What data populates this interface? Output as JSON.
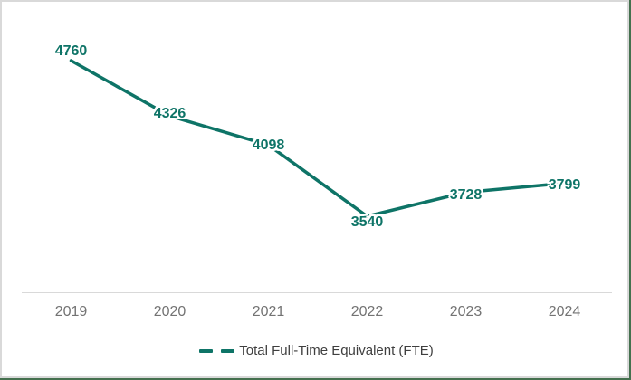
{
  "chart_data": {
    "type": "line",
    "title": "",
    "xlabel": "",
    "ylabel": "",
    "categories": [
      "2019",
      "2020",
      "2021",
      "2022",
      "2023",
      "2024"
    ],
    "series": [
      {
        "name": "Total Full-Time Equivalent (FTE)",
        "values": [
          4760,
          4326,
          4098,
          3540,
          3728,
          3799
        ]
      }
    ],
    "data_labels_shown": true,
    "gridlines": false,
    "legend_position": "bottom",
    "axis_line": "bottom-only",
    "label_offsets_y": [
      -10,
      -2,
      1,
      7,
      4,
      3
    ]
  },
  "colors": {
    "line": "#0e7467",
    "data_label": "#0e7467",
    "axis_tick_label": "#737373",
    "legend_text": "#3f3f3f",
    "axis_line": "#d9d9d9",
    "chart_border": "#d9d9d9",
    "outer_edge_green": "#44704e",
    "background": "#ffffff"
  }
}
